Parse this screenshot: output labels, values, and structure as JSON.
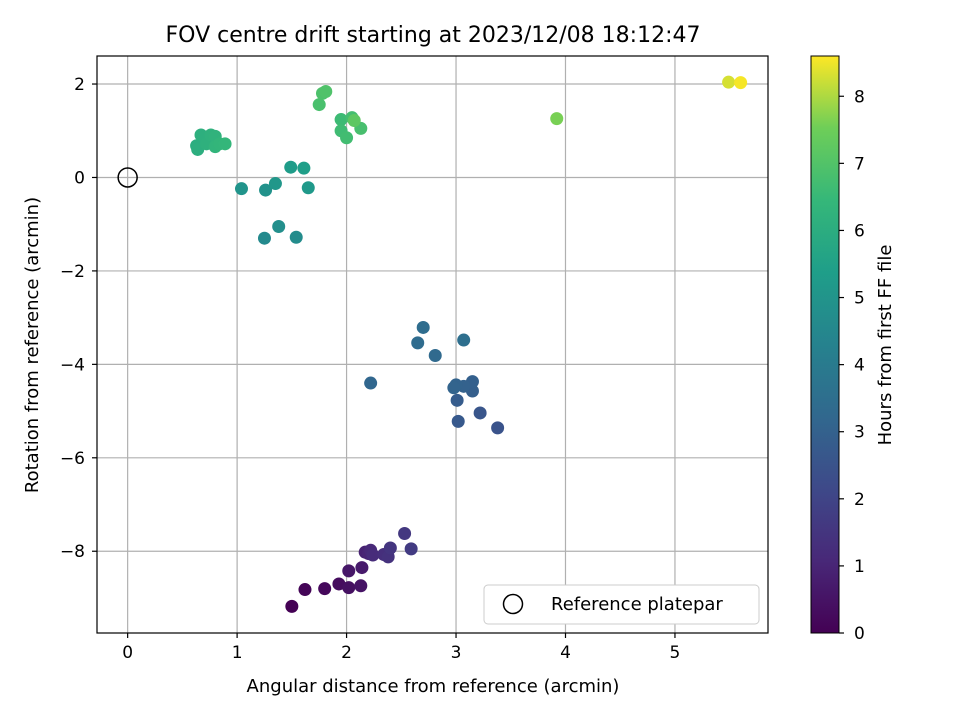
{
  "chart_data": {
    "type": "scatter",
    "title": "FOV centre drift starting at 2023/12/08 18:12:47",
    "xlabel": "Angular distance from reference (arcmin)",
    "ylabel": "Rotation from reference (arcmin)",
    "xlim": [
      -0.28,
      5.85
    ],
    "ylim": [
      -9.75,
      2.6
    ],
    "xticks": [
      0,
      1,
      2,
      3,
      4,
      5
    ],
    "yticks": [
      -8,
      -6,
      -4,
      -2,
      0,
      2
    ],
    "xtick_labels": [
      "0",
      "1",
      "2",
      "3",
      "4",
      "5"
    ],
    "ytick_labels": [
      "−8",
      "−6",
      "−4",
      "−2",
      "0",
      "2"
    ],
    "grid": true,
    "colormap": "viridis",
    "colorbar": {
      "label": "Hours from first FF file",
      "range": [
        0,
        8.6
      ],
      "ticks": [
        0,
        1,
        2,
        3,
        4,
        5,
        6,
        7,
        8
      ],
      "tick_labels": [
        "0",
        "1",
        "2",
        "3",
        "4",
        "5",
        "6",
        "7",
        "8"
      ]
    },
    "legend": {
      "placement": "lower-right",
      "entries": [
        {
          "label": "Reference platepar",
          "marker": "open-circle"
        }
      ]
    },
    "reference_point": {
      "x": 0,
      "y": 0,
      "label": "Reference platepar"
    },
    "points": [
      {
        "x": 1.5,
        "y": -9.18,
        "h": 0.0
      },
      {
        "x": 1.62,
        "y": -8.82,
        "h": 0.1
      },
      {
        "x": 1.8,
        "y": -8.8,
        "h": 0.2
      },
      {
        "x": 1.93,
        "y": -8.7,
        "h": 0.3
      },
      {
        "x": 2.02,
        "y": -8.78,
        "h": 0.4
      },
      {
        "x": 2.13,
        "y": -8.74,
        "h": 0.5
      },
      {
        "x": 2.02,
        "y": -8.42,
        "h": 0.6
      },
      {
        "x": 2.14,
        "y": -8.35,
        "h": 0.7
      },
      {
        "x": 2.17,
        "y": -8.02,
        "h": 0.9
      },
      {
        "x": 2.2,
        "y": -8.05,
        "h": 1.0
      },
      {
        "x": 2.22,
        "y": -7.98,
        "h": 1.1
      },
      {
        "x": 2.24,
        "y": -8.08,
        "h": 1.2
      },
      {
        "x": 2.34,
        "y": -8.07,
        "h": 1.3
      },
      {
        "x": 2.38,
        "y": -8.12,
        "h": 1.4
      },
      {
        "x": 2.4,
        "y": -7.93,
        "h": 1.5
      },
      {
        "x": 2.53,
        "y": -7.62,
        "h": 1.6
      },
      {
        "x": 2.59,
        "y": -7.95,
        "h": 1.7
      },
      {
        "x": 3.38,
        "y": -5.36,
        "h": 2.5
      },
      {
        "x": 3.22,
        "y": -5.04,
        "h": 2.6
      },
      {
        "x": 3.02,
        "y": -5.22,
        "h": 2.7
      },
      {
        "x": 3.01,
        "y": -4.77,
        "h": 2.8
      },
      {
        "x": 3.15,
        "y": -4.57,
        "h": 2.9
      },
      {
        "x": 3.15,
        "y": -4.37,
        "h": 2.95
      },
      {
        "x": 3.07,
        "y": -4.47,
        "h": 3.0
      },
      {
        "x": 3.0,
        "y": -4.44,
        "h": 3.05
      },
      {
        "x": 2.98,
        "y": -4.5,
        "h": 3.1
      },
      {
        "x": 2.22,
        "y": -4.4,
        "h": 3.2
      },
      {
        "x": 2.81,
        "y": -3.81,
        "h": 3.3
      },
      {
        "x": 2.65,
        "y": -3.54,
        "h": 3.4
      },
      {
        "x": 2.7,
        "y": -3.21,
        "h": 3.45
      },
      {
        "x": 3.07,
        "y": -3.48,
        "h": 3.5
      },
      {
        "x": 1.25,
        "y": -1.3,
        "h": 4.6
      },
      {
        "x": 1.54,
        "y": -1.28,
        "h": 4.7
      },
      {
        "x": 1.38,
        "y": -1.05,
        "h": 4.8
      },
      {
        "x": 1.26,
        "y": -0.27,
        "h": 4.9
      },
      {
        "x": 1.04,
        "y": -0.24,
        "h": 5.0
      },
      {
        "x": 1.35,
        "y": -0.13,
        "h": 5.1
      },
      {
        "x": 1.65,
        "y": -0.22,
        "h": 5.2
      },
      {
        "x": 1.49,
        "y": 0.22,
        "h": 5.3
      },
      {
        "x": 1.61,
        "y": 0.2,
        "h": 5.4
      },
      {
        "x": 0.63,
        "y": 0.68,
        "h": 6.0
      },
      {
        "x": 0.64,
        "y": 0.6,
        "h": 6.05
      },
      {
        "x": 0.67,
        "y": 0.91,
        "h": 6.1
      },
      {
        "x": 0.72,
        "y": 0.72,
        "h": 6.15
      },
      {
        "x": 0.76,
        "y": 0.91,
        "h": 6.2
      },
      {
        "x": 0.8,
        "y": 0.88,
        "h": 6.25
      },
      {
        "x": 0.8,
        "y": 0.66,
        "h": 6.3
      },
      {
        "x": 0.84,
        "y": 0.72,
        "h": 6.35
      },
      {
        "x": 0.89,
        "y": 0.72,
        "h": 6.4
      },
      {
        "x": 1.95,
        "y": 1.24,
        "h": 6.6
      },
      {
        "x": 1.95,
        "y": 1.0,
        "h": 6.65
      },
      {
        "x": 2.0,
        "y": 0.85,
        "h": 6.7
      },
      {
        "x": 2.05,
        "y": 1.28,
        "h": 6.75
      },
      {
        "x": 2.13,
        "y": 1.05,
        "h": 6.8
      },
      {
        "x": 1.75,
        "y": 1.56,
        "h": 6.85
      },
      {
        "x": 1.78,
        "y": 1.8,
        "h": 6.9
      },
      {
        "x": 1.81,
        "y": 1.84,
        "h": 6.95
      },
      {
        "x": 2.07,
        "y": 1.22,
        "h": 7.2
      },
      {
        "x": 3.92,
        "y": 1.26,
        "h": 7.6
      },
      {
        "x": 5.49,
        "y": 2.04,
        "h": 8.3
      },
      {
        "x": 5.6,
        "y": 2.03,
        "h": 8.55
      }
    ]
  }
}
